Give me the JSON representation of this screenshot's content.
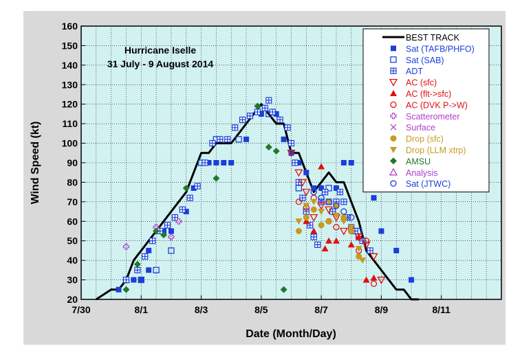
{
  "chart_data": {
    "type": "scatter",
    "title_line1": "Hurricane Iselle",
    "title_line2": "31 July - 9 August 2014",
    "xlabel": "Date (Month/Day)",
    "ylabel": "Wind Speed (kt)",
    "xlim": [
      "2014-07-30",
      "2014-08-13"
    ],
    "ylim": [
      20,
      160
    ],
    "x_ticks": [
      {
        "date": "2014-07-30",
        "label": "7/30"
      },
      {
        "date": "2014-08-01",
        "label": "8/1"
      },
      {
        "date": "2014-08-03",
        "label": "8/3"
      },
      {
        "date": "2014-08-05",
        "label": "8/5"
      },
      {
        "date": "2014-08-07",
        "label": "8/7"
      },
      {
        "date": "2014-08-09",
        "label": "8/9"
      },
      {
        "date": "2014-08-11",
        "label": "8/11"
      }
    ],
    "y_ticks": [
      20,
      30,
      40,
      50,
      60,
      70,
      80,
      90,
      100,
      110,
      120,
      130,
      140,
      150,
      160
    ],
    "colors": {
      "plot_bg": "#d2f2f2",
      "grid": "#000000",
      "blue": "#1a3fd9",
      "red": "#e01010",
      "purple": "#b040c8",
      "gold": "#c89a1e",
      "green": "#1f7a2a"
    },
    "legend": [
      {
        "label": "BEST TRACK",
        "marker": "line",
        "color": "#000000"
      },
      {
        "label": "Sat (TAFB/PHFO)",
        "marker": "square-filled",
        "color": "#1a3fd9"
      },
      {
        "label": "Sat (SAB)",
        "marker": "square-open",
        "color": "#1a3fd9"
      },
      {
        "label": "ADT",
        "marker": "square-grid",
        "color": "#1a3fd9"
      },
      {
        "label": "AC (sfc)",
        "marker": "triangle-down-open",
        "color": "#e01010"
      },
      {
        "label": "AC (flt->sfc)",
        "marker": "triangle-up-filled",
        "color": "#e01010"
      },
      {
        "label": "AC (DVK P->W)",
        "marker": "circle-open",
        "color": "#e01010"
      },
      {
        "label": "Scatterometer",
        "marker": "plus-open",
        "color": "#b040c8"
      },
      {
        "label": "Surface",
        "marker": "x",
        "color": "#b040c8"
      },
      {
        "label": "Drop (sfc)",
        "marker": "circle-filled",
        "color": "#c89a1e"
      },
      {
        "label": "Drop (LLM xtrp)",
        "marker": "triangle-down-filled",
        "color": "#c89a1e"
      },
      {
        "label": "AMSU",
        "marker": "diamond-filled",
        "color": "#1f7a2a"
      },
      {
        "label": "Analysis",
        "marker": "triangle-up-open",
        "color": "#b040c8"
      },
      {
        "label": "Sat (JTWC)",
        "marker": "circle-open",
        "color": "#1a3fd9"
      }
    ],
    "series": [
      {
        "name": "BEST TRACK",
        "kind": "line",
        "x": [
          "2014-07-30T12:00",
          "2014-07-31T00:00",
          "2014-07-31T06:00",
          "2014-07-31T12:00",
          "2014-07-31T18:00",
          "2014-08-01T00:00",
          "2014-08-01T06:00",
          "2014-08-01T12:00",
          "2014-08-01T18:00",
          "2014-08-02T00:00",
          "2014-08-02T06:00",
          "2014-08-02T12:00",
          "2014-08-02T18:00",
          "2014-08-03T00:00",
          "2014-08-03T06:00",
          "2014-08-03T12:00",
          "2014-08-03T18:00",
          "2014-08-04T00:00",
          "2014-08-04T06:00",
          "2014-08-04T12:00",
          "2014-08-04T18:00",
          "2014-08-05T00:00",
          "2014-08-05T06:00",
          "2014-08-05T12:00",
          "2014-08-05T18:00",
          "2014-08-06T00:00",
          "2014-08-06T06:00",
          "2014-08-06T12:00",
          "2014-08-06T18:00",
          "2014-08-07T00:00",
          "2014-08-07T06:00",
          "2014-08-07T12:00",
          "2014-08-07T18:00",
          "2014-08-08T00:00",
          "2014-08-08T06:00",
          "2014-08-08T12:00",
          "2014-08-08T18:00",
          "2014-08-09T00:00",
          "2014-08-09T06:00",
          "2014-08-09T12:00",
          "2014-08-09T18:00",
          "2014-08-10T00:00",
          "2014-08-10T06:00"
        ],
        "y": [
          20,
          25,
          25,
          30,
          40,
          45,
          50,
          55,
          60,
          65,
          70,
          75,
          85,
          95,
          95,
          100,
          100,
          100,
          105,
          110,
          115,
          120,
          115,
          110,
          110,
          95,
          95,
          85,
          75,
          80,
          85,
          80,
          80,
          70,
          60,
          45,
          40,
          35,
          30,
          25,
          25,
          20,
          20
        ]
      },
      {
        "name": "Sat (TAFB/PHFO)",
        "marker": "square-filled",
        "color": "#1a3fd9",
        "x": [
          "2014-07-31T06:00",
          "2014-07-31T18:00",
          "2014-08-01T00:00",
          "2014-08-01T06:00",
          "2014-08-01T06:00",
          "2014-08-01T18:00",
          "2014-08-02T00:00",
          "2014-08-02T12:00",
          "2014-08-02T18:00",
          "2014-08-03T06:00",
          "2014-08-03T12:00",
          "2014-08-03T18:00",
          "2014-08-04T00:00",
          "2014-08-04T12:00",
          "2014-08-05T00:00",
          "2014-08-05T12:00",
          "2014-08-05T18:00",
          "2014-08-06T00:00",
          "2014-08-06T06:00",
          "2014-08-06T12:00",
          "2014-08-06T18:00",
          "2014-08-07T00:00",
          "2014-08-07T12:00",
          "2014-08-07T18:00",
          "2014-08-08T00:00",
          "2014-08-08T12:00",
          "2014-08-08T18:00",
          "2014-08-09T00:00",
          "2014-08-09T12:00",
          "2014-08-10T00:00"
        ],
        "y": [
          25,
          30,
          30,
          35,
          45,
          55,
          55,
          65,
          77,
          90,
          90,
          90,
          90,
          102,
          115,
          115,
          102,
          95,
          90,
          85,
          77,
          77,
          77,
          90,
          90,
          80,
          72,
          55,
          45,
          30
        ]
      },
      {
        "name": "Sat (SAB)",
        "marker": "square-open",
        "color": "#1a3fd9",
        "x": [
          "2014-07-31T12:00",
          "2014-08-01T00:00",
          "2014-08-01T12:00",
          "2014-08-02T00:00",
          "2014-08-03T00:00",
          "2014-08-03T12:00",
          "2014-08-04T06:00",
          "2014-08-05T06:00",
          "2014-08-06T06:00",
          "2014-08-07T06:00",
          "2014-08-08T06:00"
        ],
        "y": [
          30,
          30,
          35,
          45,
          90,
          102,
          102,
          115,
          77,
          77,
          55
        ]
      },
      {
        "name": "ADT",
        "marker": "square-grid",
        "color": "#1a3fd9",
        "x": [
          "2014-07-31T12:00",
          "2014-07-31T21:00",
          "2014-08-01T03:00",
          "2014-08-01T09:00",
          "2014-08-01T15:00",
          "2014-08-01T21:00",
          "2014-08-02T03:00",
          "2014-08-02T09:00",
          "2014-08-02T15:00",
          "2014-08-02T21:00",
          "2014-08-03T03:00",
          "2014-08-03T09:00",
          "2014-08-03T15:00",
          "2014-08-03T21:00",
          "2014-08-04T03:00",
          "2014-08-04T09:00",
          "2014-08-04T15:00",
          "2014-08-04T21:00",
          "2014-08-05T03:00",
          "2014-08-05T06:00",
          "2014-08-05T09:00",
          "2014-08-05T15:00",
          "2014-08-05T21:00",
          "2014-08-06T00:00",
          "2014-08-06T03:00",
          "2014-08-06T06:00",
          "2014-08-06T09:00",
          "2014-08-06T12:00",
          "2014-08-06T15:00",
          "2014-08-06T18:00",
          "2014-08-06T21:00",
          "2014-08-07T00:00",
          "2014-08-07T03:00",
          "2014-08-07T06:00",
          "2014-08-07T09:00",
          "2014-08-07T12:00",
          "2014-08-07T15:00",
          "2014-08-07T18:00",
          "2014-08-07T21:00",
          "2014-08-08T00:00",
          "2014-08-08T03:00",
          "2014-08-08T06:00",
          "2014-08-08T09:00",
          "2014-08-08T15:00"
        ],
        "y": [
          30,
          35,
          42,
          50,
          55,
          58,
          62,
          66,
          72,
          78,
          90,
          100,
          102,
          102,
          108,
          112,
          114,
          116,
          118,
          122,
          116,
          112,
          108,
          100,
          90,
          80,
          72,
          65,
          58,
          52,
          48,
          70,
          75,
          70,
          65,
          70,
          75,
          70,
          62,
          57,
          55,
          52,
          50,
          45
        ]
      },
      {
        "name": "AC (sfc)",
        "marker": "triangle-down-open",
        "color": "#e01010",
        "x": [
          "2014-08-06T00:00",
          "2014-08-06T06:00",
          "2014-08-06T09:00",
          "2014-08-06T12:00",
          "2014-08-06T18:00",
          "2014-08-07T00:00",
          "2014-08-07T06:00",
          "2014-08-07T12:00",
          "2014-08-07T18:00",
          "2014-08-08T06:00",
          "2014-08-08T12:00",
          "2014-08-08T18:00",
          "2014-08-09T00:00"
        ],
        "y": [
          95,
          85,
          80,
          75,
          62,
          68,
          66,
          62,
          55,
          52,
          48,
          42,
          30
        ]
      },
      {
        "name": "AC (flt->sfc)",
        "marker": "triangle-up-filled",
        "color": "#e01010",
        "x": [
          "2014-08-06T12:00",
          "2014-08-06T18:00",
          "2014-08-07T00:00",
          "2014-08-07T03:00",
          "2014-08-07T06:00",
          "2014-08-07T12:00",
          "2014-08-07T18:00",
          "2014-08-08T00:00",
          "2014-08-08T06:00",
          "2014-08-08T12:00",
          "2014-08-08T18:00"
        ],
        "y": [
          60,
          55,
          88,
          46,
          50,
          50,
          62,
          48,
          52,
          30,
          31
        ]
      },
      {
        "name": "AC (DVK P->W)",
        "marker": "circle-open",
        "color": "#e01010",
        "x": [
          "2014-08-06T06:00",
          "2014-08-06T12:00",
          "2014-08-06T18:00",
          "2014-08-07T00:00",
          "2014-08-07T06:00",
          "2014-08-07T12:00",
          "2014-08-08T00:00",
          "2014-08-08T06:00",
          "2014-08-08T12:00",
          "2014-08-08T18:00"
        ],
        "y": [
          70,
          67,
          72,
          72,
          60,
          57,
          55,
          45,
          50,
          28
        ]
      },
      {
        "name": "Scatterometer",
        "marker": "plus-open",
        "color": "#b040c8",
        "x": [
          "2014-07-31T12:00",
          "2014-08-01T12:00",
          "2014-08-02T00:00",
          "2014-08-02T06:00"
        ],
        "y": [
          47,
          57,
          52,
          60
        ]
      },
      {
        "name": "Drop (sfc)",
        "marker": "circle-filled",
        "color": "#c89a1e",
        "x": [
          "2014-08-06T06:00",
          "2014-08-06T12:00",
          "2014-08-06T18:00",
          "2014-08-07T00:00",
          "2014-08-07T06:00",
          "2014-08-07T12:00",
          "2014-08-07T18:00",
          "2014-08-08T00:00",
          "2014-08-08T06:00"
        ],
        "y": [
          55,
          62,
          66,
          58,
          60,
          68,
          62,
          55,
          42
        ]
      },
      {
        "name": "Drop (LLM xtrp)",
        "marker": "triangle-down-filled",
        "color": "#c89a1e",
        "x": [
          "2014-08-06T06:00",
          "2014-08-06T12:00",
          "2014-08-06T18:00",
          "2014-08-07T00:00",
          "2014-08-07T06:00",
          "2014-08-07T12:00",
          "2014-08-07T18:00",
          "2014-08-08T00:00",
          "2014-08-08T06:00",
          "2014-08-08T09:00"
        ],
        "y": [
          60,
          68,
          70,
          65,
          70,
          63,
          60,
          57,
          46,
          40
        ]
      },
      {
        "name": "AMSU",
        "marker": "diamond-filled",
        "color": "#1f7a2a",
        "x": [
          "2014-07-31T12:00",
          "2014-07-31T21:00",
          "2014-08-01T12:00",
          "2014-08-01T18:00",
          "2014-08-02T12:00",
          "2014-08-03T12:00",
          "2014-08-04T21:00",
          "2014-08-05T06:00",
          "2014-08-05T12:00",
          "2014-08-05T18:00"
        ],
        "y": [
          25,
          38,
          55,
          53,
          77,
          82,
          119,
          98,
          96,
          25
        ]
      },
      {
        "name": "Sat (JTWC)",
        "marker": "circle-open",
        "color": "#1a3fd9",
        "x": [
          "2014-08-06T18:00",
          "2014-08-07T00:00",
          "2014-08-07T06:00",
          "2014-08-07T12:00",
          "2014-08-07T18:00",
          "2014-08-08T00:00"
        ],
        "y": [
          75,
          72,
          70,
          68,
          65,
          62
        ]
      }
    ]
  }
}
